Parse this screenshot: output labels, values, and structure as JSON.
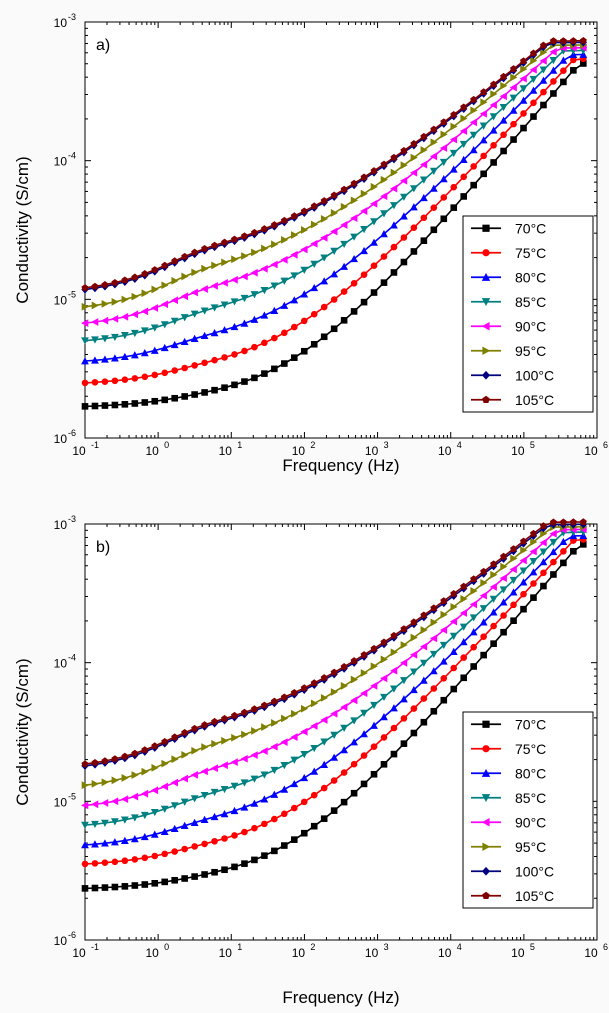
{
  "chart_data": [
    {
      "type": "line",
      "panel_label": "a)",
      "xlabel": "Frequency (Hz)",
      "ylabel": "Conductivity (S/cm)",
      "xscale": "log",
      "yscale": "log",
      "xlim": [
        0.1,
        1000000
      ],
      "ylim": [
        1e-06,
        0.001
      ],
      "x_ticks": [
        {
          "base": "10",
          "exp": "-1"
        },
        {
          "base": "10",
          "exp": "0"
        },
        {
          "base": "10",
          "exp": "1"
        },
        {
          "base": "10",
          "exp": "2"
        },
        {
          "base": "10",
          "exp": "3"
        },
        {
          "base": "10",
          "exp": "4"
        },
        {
          "base": "10",
          "exp": "5"
        },
        {
          "base": "10",
          "exp": "6"
        }
      ],
      "y_ticks": [
        {
          "base": "10",
          "exp": "-6"
        },
        {
          "base": "10",
          "exp": "-5"
        },
        {
          "base": "10",
          "exp": "-4"
        },
        {
          "base": "10",
          "exp": "-3"
        }
      ],
      "grid": false,
      "legend_position": "right",
      "x_range": [
        0.1,
        650000
      ],
      "points_per_series": 51,
      "series": [
        {
          "name": "70°C",
          "color": "#000000",
          "marker": "square",
          "low": 1.65e-06,
          "knee": 60,
          "high": 0.0005
        },
        {
          "name": "75°C",
          "color": "#ff0000",
          "marker": "circle",
          "low": 2.4e-06,
          "knee": 50,
          "high": 0.00054
        },
        {
          "name": "80°C",
          "color": "#0000ff",
          "marker": "triangle-up",
          "low": 3.4e-06,
          "knee": 45,
          "high": 0.00058
        },
        {
          "name": "85°C",
          "color": "#008080",
          "marker": "triangle-down",
          "low": 4.7e-06,
          "knee": 42,
          "high": 0.00062
        },
        {
          "name": "90°C",
          "color": "#ff00ff",
          "marker": "triangle-left",
          "low": 6.2e-06,
          "knee": 40,
          "high": 0.00065
        },
        {
          "name": "95°C",
          "color": "#808000",
          "marker": "triangle-right",
          "low": 8e-06,
          "knee": 37,
          "high": 0.00068
        },
        {
          "name": "100°C",
          "color": "#000080",
          "marker": "diamond",
          "low": 1.05e-05,
          "knee": 34,
          "high": 0.00071
        },
        {
          "name": "105°C",
          "color": "#800000",
          "marker": "pentagon",
          "low": 1.08e-05,
          "knee": 34,
          "high": 0.00073
        }
      ]
    },
    {
      "type": "line",
      "panel_label": "b)",
      "xlabel": "Frequency (Hz)",
      "ylabel": "Conductivity (S/cm)",
      "xscale": "log",
      "yscale": "log",
      "xlim": [
        0.1,
        1000000
      ],
      "ylim": [
        1e-06,
        0.001
      ],
      "x_ticks": [
        {
          "base": "10",
          "exp": "-1"
        },
        {
          "base": "10",
          "exp": "0"
        },
        {
          "base": "10",
          "exp": "1"
        },
        {
          "base": "10",
          "exp": "2"
        },
        {
          "base": "10",
          "exp": "3"
        },
        {
          "base": "10",
          "exp": "4"
        },
        {
          "base": "10",
          "exp": "5"
        },
        {
          "base": "10",
          "exp": "6"
        }
      ],
      "y_ticks": [
        {
          "base": "10",
          "exp": "-6"
        },
        {
          "base": "10",
          "exp": "-5"
        },
        {
          "base": "10",
          "exp": "-4"
        },
        {
          "base": "10",
          "exp": "-3"
        }
      ],
      "grid": false,
      "legend_position": "right",
      "x_range": [
        0.1,
        650000
      ],
      "points_per_series": 51,
      "series": [
        {
          "name": "70°C",
          "color": "#000000",
          "marker": "square",
          "low": 2.3e-06,
          "knee": 60,
          "high": 0.00071
        },
        {
          "name": "75°C",
          "color": "#ff0000",
          "marker": "circle",
          "low": 3.4e-06,
          "knee": 50,
          "high": 0.00077
        },
        {
          "name": "80°C",
          "color": "#0000ff",
          "marker": "triangle-up",
          "low": 4.6e-06,
          "knee": 45,
          "high": 0.00082
        },
        {
          "name": "85°C",
          "color": "#008080",
          "marker": "triangle-down",
          "low": 6.3e-06,
          "knee": 42,
          "high": 0.00087
        },
        {
          "name": "90°C",
          "color": "#ff00ff",
          "marker": "triangle-left",
          "low": 8.6e-06,
          "knee": 40,
          "high": 0.00091
        },
        {
          "name": "95°C",
          "color": "#808000",
          "marker": "triangle-right",
          "low": 1.18e-05,
          "knee": 37,
          "high": 0.00095
        },
        {
          "name": "100°C",
          "color": "#000080",
          "marker": "diamond",
          "low": 1.6e-05,
          "knee": 34,
          "high": 0.00099
        },
        {
          "name": "105°C",
          "color": "#800000",
          "marker": "pentagon",
          "low": 1.65e-05,
          "knee": 34,
          "high": 0.00103
        }
      ]
    }
  ]
}
